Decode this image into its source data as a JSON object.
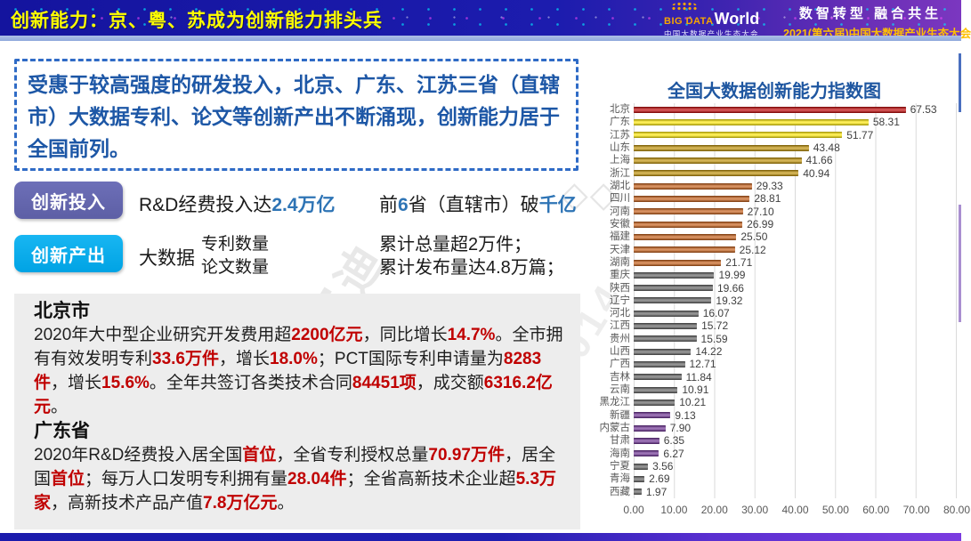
{
  "header": {
    "title": "创新能力：京、粤、苏成为创新能力排头兵",
    "logo": {
      "big": "BIG DATA",
      "world": "World",
      "sub": "中国大数据产业生态大会"
    },
    "slogan": "数智转型 融合共生",
    "event": "2021(第六届)中国大数据产业生态大会"
  },
  "intro_text": "受惠于较高强度的研发投入，北京、广东、江苏三省（直辖市）大数据专利、论文等创新产出不断涌现，创新能力居于全国前列。",
  "innovation_input": {
    "badge": "创新投入",
    "stat1": [
      {
        "t": "R&D经费投入达"
      },
      {
        "t": "2.4万亿",
        "s": "blue"
      }
    ],
    "stat2": [
      {
        "t": "前"
      },
      {
        "t": "6",
        "s": "blue"
      },
      {
        "t": "省（直辖市）破"
      },
      {
        "t": "千亿",
        "s": "blue"
      }
    ]
  },
  "innovation_output": {
    "badge": "创新产出",
    "prefix": "大数据",
    "metrics": [
      "专利数量",
      "论文数量"
    ],
    "results": [
      "累计总量超2万件；",
      "累计发布量达4.8万篇；"
    ]
  },
  "regions": {
    "beijing": {
      "title": "北京市",
      "body": [
        {
          "t": "2020年大中型企业研究开发费用超"
        },
        {
          "t": "2200亿元",
          "s": "red"
        },
        {
          "t": "，同比增长"
        },
        {
          "t": "14.7%",
          "s": "red"
        },
        {
          "t": "。全市拥有有效发明专利"
        },
        {
          "t": "33.6万件",
          "s": "red"
        },
        {
          "t": "，增长"
        },
        {
          "t": "18.0%",
          "s": "red"
        },
        {
          "t": "；PCT国际专利申请量为"
        },
        {
          "t": "8283件",
          "s": "red"
        },
        {
          "t": "，增长"
        },
        {
          "t": "15.6%",
          "s": "red"
        },
        {
          "t": "。全年共签订各类技术合同"
        },
        {
          "t": "84451项",
          "s": "red"
        },
        {
          "t": "，成交额"
        },
        {
          "t": "6316.2亿元",
          "s": "red"
        },
        {
          "t": "。"
        }
      ]
    },
    "guangdong": {
      "title": "广东省",
      "body": [
        {
          "t": "2020年R&D经费投入居全国"
        },
        {
          "t": "首位",
          "s": "red"
        },
        {
          "t": "，全省专利授权总量"
        },
        {
          "t": "70.97万件",
          "s": "red"
        },
        {
          "t": "，居全国"
        },
        {
          "t": "首位",
          "s": "red"
        },
        {
          "t": "；每万人口发明专利拥有量"
        },
        {
          "t": "28.04件",
          "s": "red"
        },
        {
          "t": "；全省高新技术企业超"
        },
        {
          "t": "5.3万家",
          "s": "red"
        },
        {
          "t": "，高新技术产品产值"
        },
        {
          "t": "7.8万亿元",
          "s": "red"
        },
        {
          "t": "。"
        }
      ]
    }
  },
  "chart_data": {
    "type": "bar",
    "orientation": "horizontal",
    "title": "全国大数据创新能力指数图",
    "xlabel": "",
    "ylabel": "",
    "xlim": [
      0,
      80
    ],
    "grid": true,
    "x_ticks": [
      "0.00",
      "10.00",
      "20.00",
      "30.00",
      "40.00",
      "50.00",
      "60.00",
      "70.00",
      "80.00"
    ],
    "palette": {
      "red": "#C00000",
      "yellow": "#FFE903",
      "gold": "#BF8F00",
      "orange": "#C55A11",
      "gray": "#5E5E5E",
      "purple": "#6A2C91"
    },
    "items": [
      {
        "label": "北京",
        "value": 67.53,
        "display": "67.53",
        "color": "red"
      },
      {
        "label": "广东",
        "value": 58.31,
        "display": "58.31",
        "color": "yellow"
      },
      {
        "label": "江苏",
        "value": 51.77,
        "display": "51.77",
        "color": "yellow"
      },
      {
        "label": "山东",
        "value": 43.48,
        "display": "43.48",
        "color": "gold"
      },
      {
        "label": "上海",
        "value": 41.66,
        "display": "41.66",
        "color": "gold"
      },
      {
        "label": "浙江",
        "value": 40.94,
        "display": "40.94",
        "color": "gold"
      },
      {
        "label": "湖北",
        "value": 29.33,
        "display": "29.33",
        "color": "orange"
      },
      {
        "label": "四川",
        "value": 28.81,
        "display": "28.81",
        "color": "orange"
      },
      {
        "label": "河南",
        "value": 27.1,
        "display": "27.10",
        "color": "orange"
      },
      {
        "label": "安徽",
        "value": 26.99,
        "display": "26.99",
        "color": "orange"
      },
      {
        "label": "福建",
        "value": 25.5,
        "display": "25.50",
        "color": "orange"
      },
      {
        "label": "天津",
        "value": 25.12,
        "display": "25.12",
        "color": "orange"
      },
      {
        "label": "湖南",
        "value": 21.71,
        "display": "21.71",
        "color": "orange"
      },
      {
        "label": "重庆",
        "value": 19.99,
        "display": "19.99",
        "color": "gray"
      },
      {
        "label": "陕西",
        "value": 19.66,
        "display": "19.66",
        "color": "gray"
      },
      {
        "label": "辽宁",
        "value": 19.32,
        "display": "19.32",
        "color": "gray"
      },
      {
        "label": "河北",
        "value": 16.07,
        "display": "16.07",
        "color": "gray"
      },
      {
        "label": "江西",
        "value": 15.72,
        "display": "15.72",
        "color": "gray"
      },
      {
        "label": "贵州",
        "value": 15.59,
        "display": "15.59",
        "color": "gray"
      },
      {
        "label": "山西",
        "value": 14.22,
        "display": "14.22",
        "color": "gray"
      },
      {
        "label": "广西",
        "value": 12.71,
        "display": "12.71",
        "color": "gray"
      },
      {
        "label": "吉林",
        "value": 11.84,
        "display": "11.84",
        "color": "gray"
      },
      {
        "label": "云南",
        "value": 10.91,
        "display": "10.91",
        "color": "gray"
      },
      {
        "label": "黑龙江",
        "value": 10.21,
        "display": "10.21",
        "color": "gray"
      },
      {
        "label": "新疆",
        "value": 9.13,
        "display": "9.13",
        "color": "purple"
      },
      {
        "label": "内蒙古",
        "value": 7.9,
        "display": "7.90",
        "color": "purple"
      },
      {
        "label": "甘肃",
        "value": 6.35,
        "display": "6.35",
        "color": "purple"
      },
      {
        "label": "海南",
        "value": 6.27,
        "display": "6.27",
        "color": "purple"
      },
      {
        "label": "宁夏",
        "value": 3.56,
        "display": "3.56",
        "color": "gray"
      },
      {
        "label": "青海",
        "value": 2.69,
        "display": "2.69",
        "color": "gray"
      },
      {
        "label": "西藏",
        "value": 1.97,
        "display": "1.97",
        "color": "gray"
      }
    ]
  },
  "watermarks": [
    "ccid赛迪",
    "ccid-2014",
    "◇◇"
  ]
}
